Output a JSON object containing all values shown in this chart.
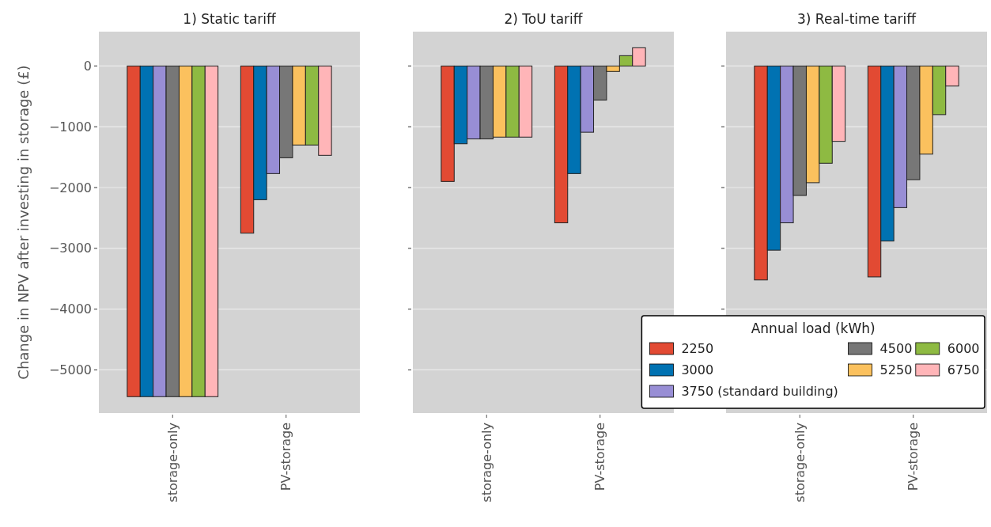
{
  "chart_data": [
    {
      "type": "bar",
      "title": "1) Static tariff",
      "ylabel": "Change in NPV after investing in storage (£)",
      "categories": [
        "storage-only",
        "PV-storage"
      ],
      "ylim": [
        -5710,
        565
      ],
      "yticks": [
        -5000,
        -4000,
        -3000,
        -2000,
        -1000,
        0
      ],
      "grid": "y",
      "series": [
        {
          "color": "#e24a33",
          "values": [
            -5440,
            -2750
          ]
        },
        {
          "color": "#0072b2",
          "values": [
            -5440,
            -2200
          ]
        },
        {
          "color": "#988ed5",
          "values": [
            -5440,
            -1770
          ]
        },
        {
          "color": "#777777",
          "values": [
            -5440,
            -1510
          ]
        },
        {
          "color": "#fbc15e",
          "values": [
            -5440,
            -1300
          ]
        },
        {
          "color": "#8eba42",
          "values": [
            -5440,
            -1300
          ]
        },
        {
          "color": "#ffb5b8",
          "values": [
            -5440,
            -1470
          ]
        }
      ]
    },
    {
      "type": "bar",
      "title": "2) ToU tariff",
      "categories": [
        "storage-only",
        "PV-storage"
      ],
      "ylim": [
        -5710,
        565
      ],
      "yticks": [
        -5000,
        -4000,
        -3000,
        -2000,
        -1000,
        0
      ],
      "tick_labels": "x",
      "grid": "y",
      "series": [
        {
          "color": "#e24a33",
          "values": [
            -1900,
            -2580
          ]
        },
        {
          "color": "#0072b2",
          "values": [
            -1280,
            -1770
          ]
        },
        {
          "color": "#988ed5",
          "values": [
            -1200,
            -1090
          ]
        },
        {
          "color": "#777777",
          "values": [
            -1200,
            -560
          ]
        },
        {
          "color": "#fbc15e",
          "values": [
            -1170,
            -90
          ]
        },
        {
          "color": "#8eba42",
          "values": [
            -1170,
            170
          ]
        },
        {
          "color": "#ffb5b8",
          "values": [
            -1170,
            300
          ]
        }
      ]
    },
    {
      "type": "bar",
      "title": "3) Real-time tariff",
      "legend_title": "Annual load (kWh)",
      "legend": "bottom",
      "categories": [
        "storage-only",
        "PV-storage"
      ],
      "ylim": [
        -5710,
        565
      ],
      "yticks": [
        -5000,
        -4000,
        -3000,
        -2000,
        -1000,
        0
      ],
      "tick_labels": "x",
      "grid": "y",
      "series": [
        {
          "name": "2250",
          "color": "#e24a33",
          "values": [
            -3520,
            -3470
          ]
        },
        {
          "name": "3000",
          "color": "#0072b2",
          "values": [
            -3030,
            -2880
          ]
        },
        {
          "name": "3750 (standard building)",
          "color": "#988ed5",
          "values": [
            -2580,
            -2330
          ]
        },
        {
          "name": "4500",
          "color": "#777777",
          "values": [
            -2130,
            -1870
          ]
        },
        {
          "name": "5250",
          "color": "#fbc15e",
          "values": [
            -1920,
            -1450
          ]
        },
        {
          "name": "6000",
          "color": "#8eba42",
          "values": [
            -1600,
            -800
          ]
        },
        {
          "name": "6750",
          "color": "#ffb5b8",
          "values": [
            -1240,
            -330
          ]
        }
      ]
    }
  ]
}
